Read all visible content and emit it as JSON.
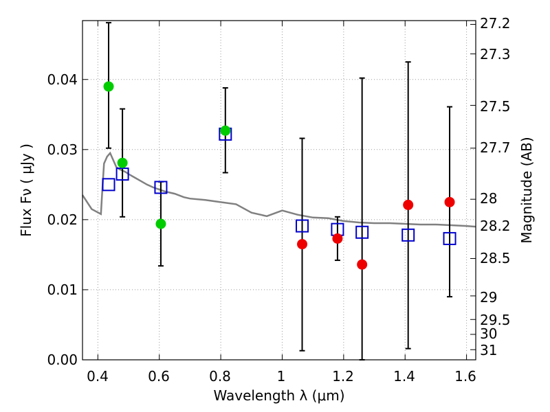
{
  "chart_data": {
    "type": "scatter",
    "title": "",
    "xlabel": "Wavelength  λ (μm)",
    "ylabel": "Flux  Fν  ( μJy )",
    "ylabel_right": "Magnitude (AB)",
    "xlim": [
      0.35,
      1.63
    ],
    "ylim": [
      0.0,
      0.0484
    ],
    "grid": true,
    "x_ticks": [
      0.4,
      0.6,
      0.8,
      1.0,
      1.2,
      1.4,
      1.6
    ],
    "x_tick_labels": [
      "0.4",
      "0.6",
      "0.8",
      "1",
      "1.2",
      "1.4",
      "1.6"
    ],
    "y_ticks": [
      0.0,
      0.01,
      0.02,
      0.03,
      0.04
    ],
    "y_tick_labels": [
      "0.00",
      "0.01",
      "0.02",
      "0.03",
      "0.04"
    ],
    "right_axis_labels": [
      "27.2",
      "27.3",
      "27.5",
      "27.7",
      "28",
      "28.2",
      "28.5",
      "29",
      "29.5",
      "30",
      "31"
    ],
    "colors": {
      "model": "#808080",
      "observed_blue": "#00cc00",
      "observed_red": "#ee0000",
      "model_photometry": "#0000cc",
      "errorbar": "#000000",
      "grid": "#999999"
    },
    "series": [
      {
        "type": "line",
        "x": [
          0.35,
          0.38,
          0.41,
          0.415,
          0.42,
          0.43,
          0.44,
          0.45,
          0.46,
          0.47,
          0.48,
          0.49,
          0.5,
          0.52,
          0.54,
          0.56,
          0.58,
          0.6,
          0.62,
          0.65,
          0.68,
          0.7,
          0.75,
          0.8,
          0.85,
          0.9,
          0.95,
          1.0,
          1.05,
          1.1,
          1.15,
          1.2,
          1.25,
          1.3,
          1.35,
          1.4,
          1.45,
          1.5,
          1.55,
          1.6,
          1.63
        ],
        "y": [
          0.0235,
          0.0215,
          0.0208,
          0.0245,
          0.028,
          0.029,
          0.0295,
          0.0285,
          0.0275,
          0.0272,
          0.027,
          0.0268,
          0.0265,
          0.026,
          0.0255,
          0.025,
          0.0246,
          0.0243,
          0.024,
          0.0237,
          0.0232,
          0.023,
          0.0228,
          0.0225,
          0.0222,
          0.021,
          0.0205,
          0.0213,
          0.0207,
          0.0203,
          0.0202,
          0.0198,
          0.0196,
          0.0195,
          0.0195,
          0.0194,
          0.0193,
          0.0193,
          0.0192,
          0.0191,
          0.019
        ]
      },
      {
        "type": "scatter",
        "x": [
          0.435,
          0.48,
          0.605,
          0.815
        ],
        "y": [
          0.039,
          0.0281,
          0.0194,
          0.0327
        ],
        "yerr_low": [
          0.0302,
          0.0204,
          0.0134,
          0.0267
        ],
        "yerr_high": [
          0.0481,
          0.0358,
          0.0254,
          0.0388
        ]
      },
      {
        "type": "scatter",
        "x": [
          1.065,
          1.18,
          1.26,
          1.41,
          1.545
        ],
        "y": [
          0.0165,
          0.0173,
          0.0136,
          0.0221,
          0.0225
        ],
        "yerr_low": [
          0.0013,
          0.0142,
          0.0,
          0.0016,
          0.009
        ],
        "yerr_high": [
          0.0316,
          0.0204,
          0.0402,
          0.0425,
          0.0361
        ]
      },
      {
        "type": "scatter",
        "x": [
          0.435,
          0.48,
          0.605,
          0.815,
          1.065,
          1.18,
          1.26,
          1.41,
          1.545
        ],
        "y": [
          0.025,
          0.0265,
          0.0246,
          0.0322,
          0.0191,
          0.0186,
          0.0182,
          0.0178,
          0.0173
        ]
      }
    ]
  }
}
